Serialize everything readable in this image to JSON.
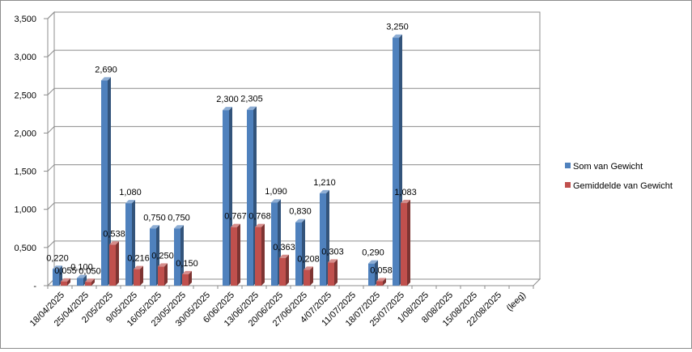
{
  "chart_data": {
    "type": "bar",
    "bar_style": "3d-column",
    "categories": [
      "18/04/2025",
      "25/04/2025",
      "2/05/2025",
      "9/05/2025",
      "16/05/2025",
      "23/05/2025",
      "30/05/2025",
      "6/06/2025",
      "13/06/2025",
      "20/06/2025",
      "27/06/2025",
      "4/07/2025",
      "11/07/2025",
      "18/07/2025",
      "25/07/2025",
      "1/08/2025",
      "8/08/2025",
      "15/08/2025",
      "22/08/2025",
      "(leeg)"
    ],
    "series": [
      {
        "name": "Som van Gewicht",
        "color": "#4F81BD",
        "values": [
          0.22,
          0.1,
          2.69,
          1.08,
          0.75,
          0.75,
          null,
          2.3,
          2.305,
          1.09,
          0.83,
          1.21,
          null,
          0.29,
          3.25,
          null,
          null,
          null,
          null,
          null
        ],
        "labels": [
          "0,220",
          "0,100",
          "2,690",
          "1,080",
          "0,750",
          "0,750",
          "",
          "2,300",
          "2,305",
          "1,090",
          "0,830",
          "1,210",
          "",
          "0,290",
          "3,250",
          "",
          "",
          "",
          "",
          ""
        ]
      },
      {
        "name": "Gemiddelde van Gewicht",
        "color": "#C0504D",
        "values": [
          0.055,
          0.05,
          0.538,
          0.216,
          0.25,
          0.15,
          null,
          0.767,
          0.768,
          0.363,
          0.208,
          0.303,
          null,
          0.058,
          1.083,
          null,
          null,
          null,
          null,
          null
        ],
        "labels": [
          "0,055",
          "0,050",
          "0,538",
          "0,216",
          "0,250",
          "0,150",
          "",
          "0,767",
          "0,768",
          "0,363",
          "0,208",
          "0,303",
          "",
          "0,058",
          "1,083",
          "",
          "",
          "",
          "",
          ""
        ]
      }
    ],
    "y_ticks": [
      "-",
      "0,500",
      "1,000",
      "1,500",
      "2,000",
      "2,500",
      "3,000",
      "3,500"
    ],
    "ylim": [
      0,
      3.5
    ],
    "grid": "horizontal",
    "legend_position": "right"
  }
}
